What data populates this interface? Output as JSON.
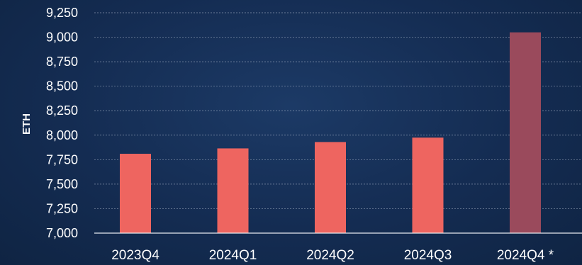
{
  "chart_data": {
    "type": "bar",
    "title": "",
    "xlabel": "",
    "ylabel": "ETH",
    "ylim": [
      7000,
      9250
    ],
    "yticks": [
      7000,
      7250,
      7500,
      7750,
      8000,
      8250,
      8500,
      8750,
      9000,
      9250
    ],
    "ytick_labels": [
      "7,000",
      "7,250",
      "7,500",
      "7,750",
      "8,000",
      "8,250",
      "8,500",
      "8,750",
      "9,000",
      "9,250"
    ],
    "categories": [
      "2023Q4",
      "2024Q1",
      "2024Q2",
      "2024Q3",
      "2024Q4 *"
    ],
    "values": [
      7810,
      7865,
      7930,
      7975,
      9050
    ],
    "bar_colors": [
      "#ee6560",
      "#ee6560",
      "#ee6560",
      "#ee6560",
      "#9a4a5c"
    ],
    "grid": true,
    "legend": "none"
  }
}
